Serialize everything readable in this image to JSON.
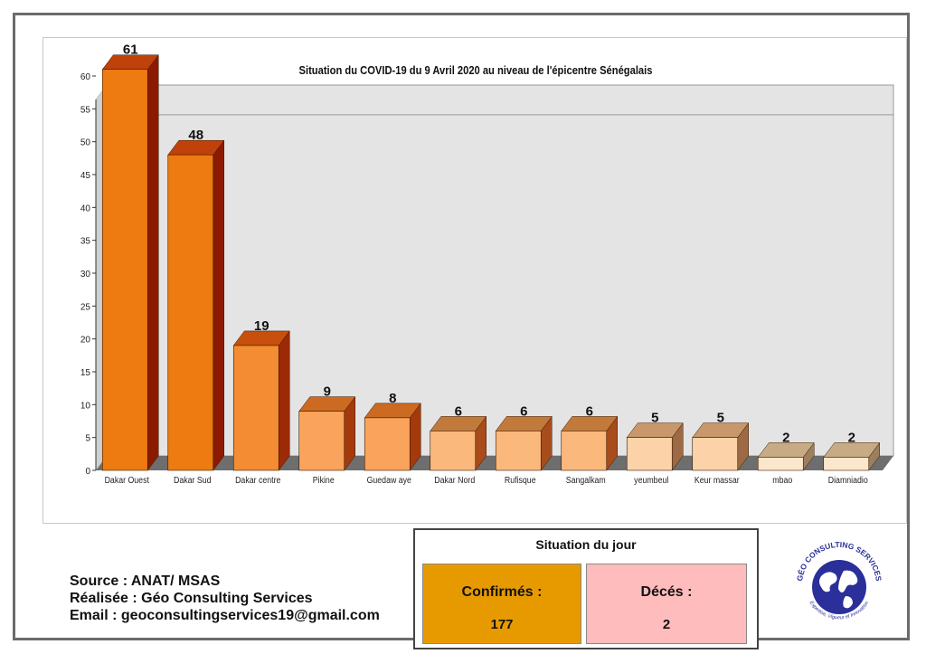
{
  "colors": {
    "bar_front": [
      "#ee7b12",
      "#ee7b12",
      "#f38c32",
      "#f9a35c",
      "#f9a35c",
      "#fbb87c",
      "#fbb87c",
      "#fbb87c",
      "#fcd2a8",
      "#fcd2a8",
      "#fde6cc",
      "#fde6cc"
    ],
    "bar_side": [
      "#8b1a00",
      "#8b1a00",
      "#9c2a06",
      "#a43a0c",
      "#a43a0c",
      "#a84c1c",
      "#a84c1c",
      "#a84c1c",
      "#9c6a44",
      "#9c6a44",
      "#9a805c",
      "#9a805c"
    ],
    "bar_top": [
      "#c0410a",
      "#c0410a",
      "#c8500c",
      "#cc6a22",
      "#cc6a22",
      "#c27a3c",
      "#c27a3c",
      "#c27a3c",
      "#c8986c",
      "#c8986c",
      "#c7ab84",
      "#c7ab84"
    ],
    "confirmes_bg": "#e79a00",
    "deces_bg": "#ffbcbc",
    "plot_bg": "#e4e4e4"
  },
  "chart_data": {
    "type": "bar",
    "title": "Situation du COVID-19 du 9 Avril 2020 au niveau de l'épicentre Sénégalais",
    "categories": [
      "Dakar Ouest",
      "Dakar Sud",
      "Dakar centre",
      "Pikine",
      "Guedaw aye",
      "Dakar Nord",
      "Rufisque",
      "Sangalkam",
      "yeumbeul",
      "Keur massar",
      "mbao",
      "Diamniadio"
    ],
    "values": [
      61,
      48,
      19,
      9,
      8,
      6,
      6,
      6,
      5,
      5,
      2,
      2
    ],
    "ylim": [
      0,
      60
    ],
    "yticks": [
      0,
      5,
      10,
      15,
      20,
      25,
      30,
      35,
      40,
      45,
      50,
      55,
      60
    ],
    "ref_line": 53,
    "style": "3d",
    "grid": false
  },
  "source": {
    "source_line": "Source : ANAT/ MSAS",
    "realisee_line": "Réalisée : Géo Consulting Services",
    "email_line": "Email : geoconsultingservices19@gmail.com"
  },
  "situation_du_jour": {
    "title": "Situation du jour",
    "confirmes_label": "Confirmés :",
    "confirmes_value": "177",
    "deces_label": "Décés :",
    "deces_value": "2"
  },
  "logo": {
    "icon": "globe-icon",
    "ring_text": "GÉO CONSULTING SERVICES",
    "tagline": "Expertise, Vigueur et Innovation"
  }
}
